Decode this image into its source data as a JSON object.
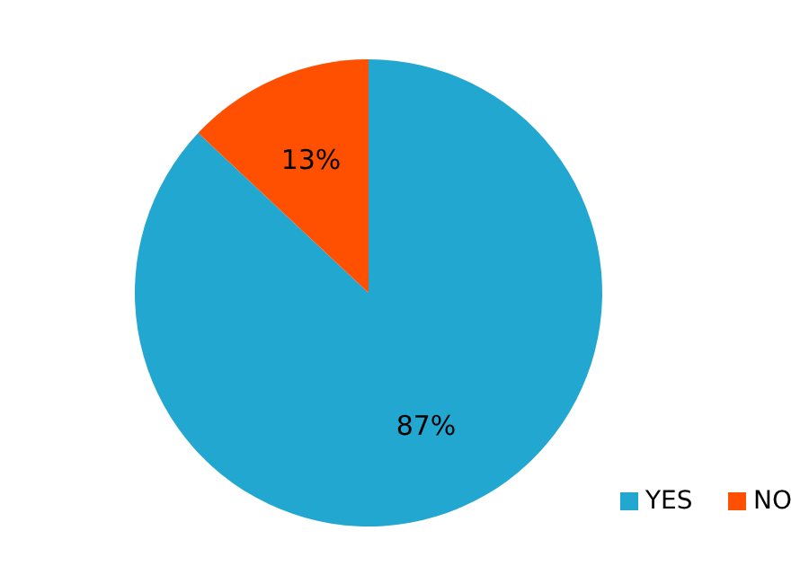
{
  "chart_data": {
    "type": "pie",
    "categories": [
      "YES",
      "NO"
    ],
    "values": [
      87,
      13
    ],
    "colors": [
      "#22a7d1",
      "#fe5000"
    ],
    "value_labels": [
      "87%",
      "13%"
    ],
    "legend": "bottom right"
  }
}
